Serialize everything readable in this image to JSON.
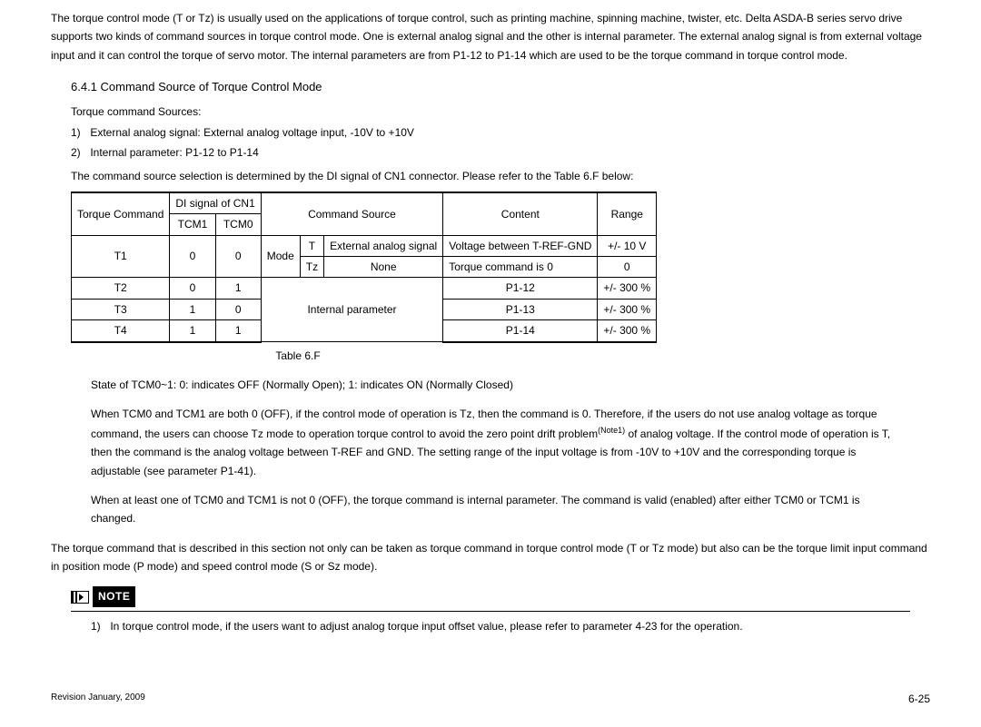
{
  "intro": "The torque control mode (T or Tz) is usually used on the applications of torque control, such as printing machine, spinning machine, twister, etc. Delta ASDA-B series servo drive supports two kinds of command sources in torque control mode. One is external analog signal and the other is internal parameter. The external analog signal is from external voltage input and it can control the torque of servo motor. The internal parameters are from P1-12 to P1-14 which are used to be the torque command in torque control mode.",
  "heading": "6.4.1  Command Source of Torque Control Mode",
  "sources_title": "Torque command Sources:",
  "sources": [
    "External analog signal: External analog voltage input, -10V to +10V",
    "Internal parameter: P1-12 to P1-14"
  ],
  "pre_table": "The command source selection is determined by the DI signal of CN1 connector. Please refer to the Table 6.F below:",
  "table": {
    "head": {
      "torque_cmd": "Torque Command",
      "di_signal": "DI signal of CN1",
      "tcm1": "TCM1",
      "tcm0": "TCM0",
      "cmd_source": "Command Source",
      "content": "Content",
      "range": "Range"
    },
    "rows": {
      "t1": {
        "cmd": "T1",
        "tcm1": "0",
        "tcm0": "0",
        "mode": "Mode",
        "sub1_code": "T",
        "sub1_src": "External analog signal",
        "sub1_content": "Voltage between T-REF-GND",
        "sub1_range": "+/- 10 V",
        "sub2_code": "Tz",
        "sub2_src": "None",
        "sub2_content": "Torque command is 0",
        "sub2_range": "0"
      },
      "t2": {
        "cmd": "T2",
        "tcm1": "0",
        "tcm0": "1",
        "src": "Internal parameter",
        "content": "P1-12",
        "range": "+/- 300 %"
      },
      "t3": {
        "cmd": "T3",
        "tcm1": "1",
        "tcm0": "0",
        "content": "P1-13",
        "range": "+/- 300 %"
      },
      "t4": {
        "cmd": "T4",
        "tcm1": "1",
        "tcm0": "1",
        "content": "P1-14",
        "range": "+/- 300 %"
      }
    },
    "caption": "Table 6.F"
  },
  "explain1": "State of TCM0~1: 0: indicates OFF (Normally Open); 1: indicates ON (Normally Closed)",
  "explain2a": "When TCM0 and TCM1 are both 0 (OFF), if the control mode of operation is Tz, then the command is 0. Therefore, if the users do not use analog voltage as torque command, the users can choose Tz mode to operation torque control to avoid the zero point drift problem",
  "explain2_note": "(Note1)",
  "explain2b": " of analog voltage. If the control mode of operation is T, then the command is the analog voltage between T-REF and GND. The setting range of the input voltage is from -10V to +10V and the corresponding torque is adjustable (see parameter P1-41).",
  "explain3": "When at least one of TCM0 and TCM1 is not 0 (OFF), the torque command is internal parameter. The command is valid (enabled) after either TCM0 or TCM1 is changed.",
  "closing": "The torque command that is described in this section not only can be taken as torque command in torque control mode (T or Tz mode) but also can be the torque limit input command in position mode (P mode) and speed control mode (S or Sz mode).",
  "note_label": "NOTE",
  "note_text": "In torque control mode, if the users want to adjust analog torque input offset value, please refer to parameter 4-23 for the operation.",
  "footer_left": "Revision January, 2009",
  "footer_right": "6-25"
}
